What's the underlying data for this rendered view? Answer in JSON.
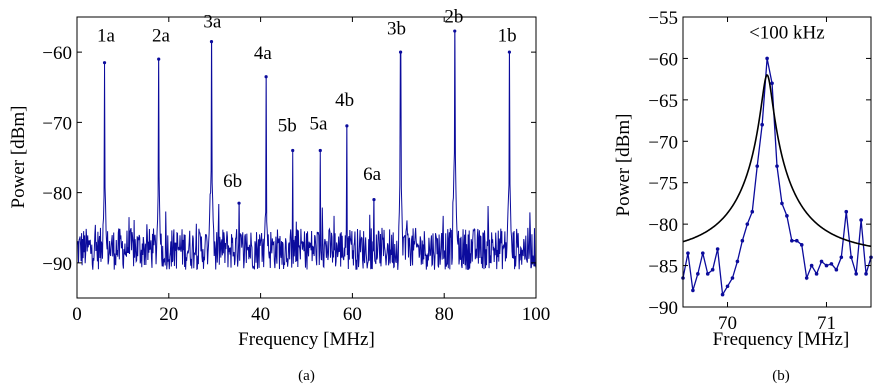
{
  "colors": {
    "trace": "#0b0b9c",
    "fit": "#000000",
    "axis": "#000000"
  },
  "panel_a": {
    "caption": "(a)",
    "xlabel": "Frequency [MHz]",
    "ylabel": "Power [dBm]",
    "xticks": [
      "0",
      "20",
      "40",
      "60",
      "80",
      "100"
    ],
    "yticks": [
      "−60",
      "−70",
      "−80",
      "−90"
    ]
  },
  "panel_b": {
    "caption": "(b)",
    "xlabel": "Frequency [MHz]",
    "ylabel": "Power [dBm]",
    "xticks": [
      "70",
      "71"
    ],
    "yticks": [
      "−55",
      "−60",
      "−65",
      "−70",
      "−75",
      "−80",
      "−85",
      "−90"
    ],
    "annotation": "<100 kHz"
  },
  "chart_data": [
    {
      "type": "line",
      "xlim": [
        0,
        100
      ],
      "ylim": [
        -95,
        -55
      ],
      "xlabel": "Frequency [MHz]",
      "ylabel": "Power [dBm]",
      "noise_floor_dbm": -88,
      "peaks": [
        {
          "label": "1a",
          "x": 6,
          "y": -61.5
        },
        {
          "label": "2a",
          "x": 17.8,
          "y": -61
        },
        {
          "label": "3a",
          "x": 29.3,
          "y": -58.5
        },
        {
          "label": "6b",
          "x": 35.3,
          "y": -81.5
        },
        {
          "label": "4a",
          "x": 41.2,
          "y": -63.5
        },
        {
          "label": "5b",
          "x": 47,
          "y": -74
        },
        {
          "label": "5a",
          "x": 53,
          "y": -74
        },
        {
          "label": "4b",
          "x": 58.8,
          "y": -70.5
        },
        {
          "label": "6a",
          "x": 64.7,
          "y": -81
        },
        {
          "label": "3b",
          "x": 70.5,
          "y": -60
        },
        {
          "label": "2b",
          "x": 82.3,
          "y": -57
        },
        {
          "label": "1b",
          "x": 94.2,
          "y": -60
        }
      ],
      "peak_labels": [
        {
          "text": "1a",
          "x": 6.3,
          "y": -58.5
        },
        {
          "text": "2a",
          "x": 18.3,
          "y": -58.5
        },
        {
          "text": "3a",
          "x": 29.5,
          "y": -56.5
        },
        {
          "text": "4a",
          "x": 40.5,
          "y": -61
        },
        {
          "text": "5b",
          "x": 45.8,
          "y": -71.3
        },
        {
          "text": "5a",
          "x": 52.6,
          "y": -71
        },
        {
          "text": "4b",
          "x": 58.3,
          "y": -67.7
        },
        {
          "text": "6b",
          "x": 33.9,
          "y": -79.2
        },
        {
          "text": "6a",
          "x": 64.3,
          "y": -78.2
        },
        {
          "text": "3b",
          "x": 69.6,
          "y": -57.5
        },
        {
          "text": "2b",
          "x": 82.1,
          "y": -55.8
        },
        {
          "text": "1b",
          "x": 93.7,
          "y": -58.5
        }
      ]
    },
    {
      "type": "line",
      "xlim": [
        69.55,
        71.45
      ],
      "ylim": [
        -90,
        -55
      ],
      "xlabel": "Frequency [MHz]",
      "ylabel": "Power [dBm]",
      "series": [
        {
          "x": [
            69.55,
            69.6,
            69.65,
            69.7,
            69.75,
            69.8,
            69.85,
            69.9,
            69.95,
            70.0,
            70.05,
            70.1,
            70.15,
            70.2,
            70.25,
            70.3,
            70.35,
            70.4,
            70.45,
            70.5,
            70.55,
            70.6,
            70.65,
            70.7,
            70.75,
            70.8,
            70.85,
            70.9,
            70.95,
            71.0,
            71.05,
            71.1,
            71.15,
            71.2,
            71.25,
            71.3,
            71.35,
            71.4,
            71.45
          ],
          "y": [
            -86.5,
            -83.5,
            -88,
            -86,
            -83.5,
            -86,
            -85.5,
            -83,
            -88.5,
            -87.5,
            -86.5,
            -84.5,
            -82,
            -80,
            -78.5,
            -73,
            -68,
            -60,
            -63,
            -73,
            -77.5,
            -79,
            -82,
            -82,
            -82.5,
            -86.5,
            -85,
            -86,
            -84.5,
            -85,
            -84.8,
            -85.5,
            -84,
            -78.5,
            -84,
            -86,
            -79.5,
            -86,
            -84
          ]
        }
      ],
      "fit": {
        "type": "lorentzian",
        "center_mhz": 70.4,
        "peak_dbm": -62,
        "floor_dbm": -84,
        "fwhm_mhz": 0.1
      },
      "annotation": {
        "text": "<100 kHz",
        "x": 70.6,
        "y": -57.6
      }
    }
  ]
}
